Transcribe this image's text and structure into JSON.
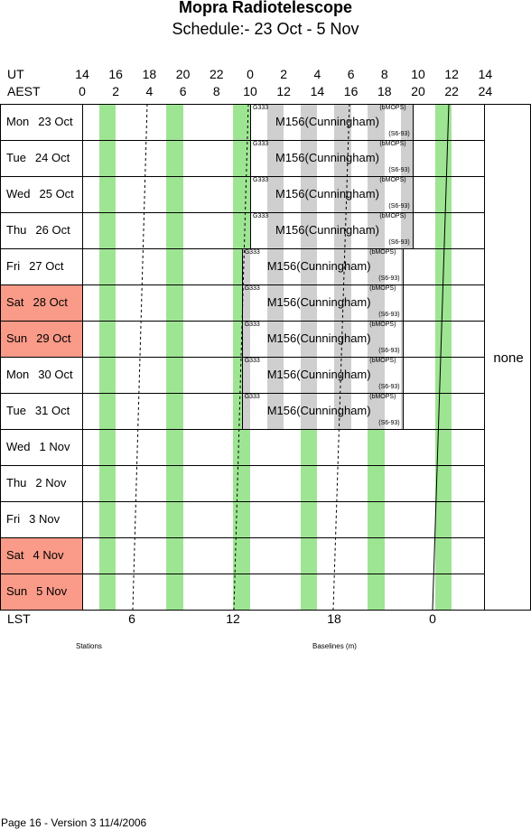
{
  "header": {
    "title": "Mopra Radiotelescope",
    "subtitle": "Schedule:- 23 Oct - 5  Nov"
  },
  "axis": {
    "ut_label": "UT",
    "aest_label": "AEST",
    "ut_ticks": [
      "14",
      "16",
      "18",
      "20",
      "22",
      "0",
      "2",
      "4",
      "6",
      "8",
      "10",
      "12",
      "14"
    ],
    "aest_ticks": [
      "0",
      "2",
      "4",
      "6",
      "8",
      "10",
      "12",
      "14",
      "16",
      "18",
      "20",
      "22",
      "24"
    ],
    "lst_label": "LST",
    "lst_ticks": [
      "6",
      "12",
      "18",
      "0"
    ]
  },
  "days": [
    {
      "day": "Mon",
      "date": "23 Oct",
      "weekend": false
    },
    {
      "day": "Tue",
      "date": "24 Oct",
      "weekend": false
    },
    {
      "day": "Wed",
      "date": "25 Oct",
      "weekend": false
    },
    {
      "day": "Thu",
      "date": "26 Oct",
      "weekend": false
    },
    {
      "day": "Fri",
      "date": "27 Oct",
      "weekend": false
    },
    {
      "day": "Sat",
      "date": "28 Oct",
      "weekend": true
    },
    {
      "day": "Sun",
      "date": "29 Oct",
      "weekend": true
    },
    {
      "day": "Mon",
      "date": "30 Oct",
      "weekend": false
    },
    {
      "day": "Tue",
      "date": "31 Oct",
      "weekend": false
    },
    {
      "day": "Wed",
      "date": "1  Nov",
      "weekend": false
    },
    {
      "day": "Thu",
      "date": "2  Nov",
      "weekend": false
    },
    {
      "day": "Fri",
      "date": "3  Nov",
      "weekend": false
    },
    {
      "day": "Sat",
      "date": "4  Nov",
      "weekend": true
    },
    {
      "day": "Sun",
      "date": "5  Nov",
      "weekend": true
    }
  ],
  "bookings": [
    {
      "row": 0,
      "start_hours": 10.0,
      "end_hours": 19.7,
      "left_tag": "G333",
      "project": "M156(Cunningham)",
      "right_top": "(bMOPS)",
      "right_bottom": "(S6-93)"
    },
    {
      "row": 1,
      "start_hours": 10.0,
      "end_hours": 19.7,
      "left_tag": "G333",
      "project": "M156(Cunningham)",
      "right_top": "(bMOPS)",
      "right_bottom": "(S6-93)"
    },
    {
      "row": 2,
      "start_hours": 10.0,
      "end_hours": 19.7,
      "left_tag": "G333",
      "project": "M156(Cunningham)",
      "right_top": "(bMOPS)",
      "right_bottom": "(S6-93)"
    },
    {
      "row": 3,
      "start_hours": 10.0,
      "end_hours": 19.7,
      "left_tag": "G333",
      "project": "M156(Cunningham)",
      "right_top": "(bMOPS)",
      "right_bottom": "(S6-93)"
    },
    {
      "row": 4,
      "start_hours": 9.5,
      "end_hours": 19.1,
      "left_tag": "G333",
      "project": "M156(Cunningham)",
      "right_top": "(bMOPS)",
      "right_bottom": "(S6-93)"
    },
    {
      "row": 5,
      "start_hours": 9.5,
      "end_hours": 19.1,
      "left_tag": "G333",
      "project": "M156(Cunningham)",
      "right_top": "(bMOPS)",
      "right_bottom": "(S6-93)"
    },
    {
      "row": 6,
      "start_hours": 9.5,
      "end_hours": 19.1,
      "left_tag": "G333",
      "project": "M156(Cunningham)",
      "right_top": "(bMOPS)",
      "right_bottom": "(S6-93)"
    },
    {
      "row": 7,
      "start_hours": 9.5,
      "end_hours": 19.1,
      "left_tag": "G333",
      "project": "M156(Cunningham)",
      "right_top": "(bMOPS)",
      "right_bottom": "(S6-93)"
    },
    {
      "row": 8,
      "start_hours": 9.5,
      "end_hours": 19.1,
      "left_tag": "G333",
      "project": "M156(Cunningham)",
      "right_top": "(bMOPS)",
      "right_bottom": "(S6-93)"
    }
  ],
  "side_note": "none",
  "bottom": {
    "stations_label": "Stations",
    "baselines_label": "Baselines (m)",
    "footer": "Page 16 - Version 3  11/4/2006"
  },
  "colors": {
    "stripe": "#9ee593",
    "weekend": "#fa9a88",
    "booking": "#cfcfcf"
  }
}
